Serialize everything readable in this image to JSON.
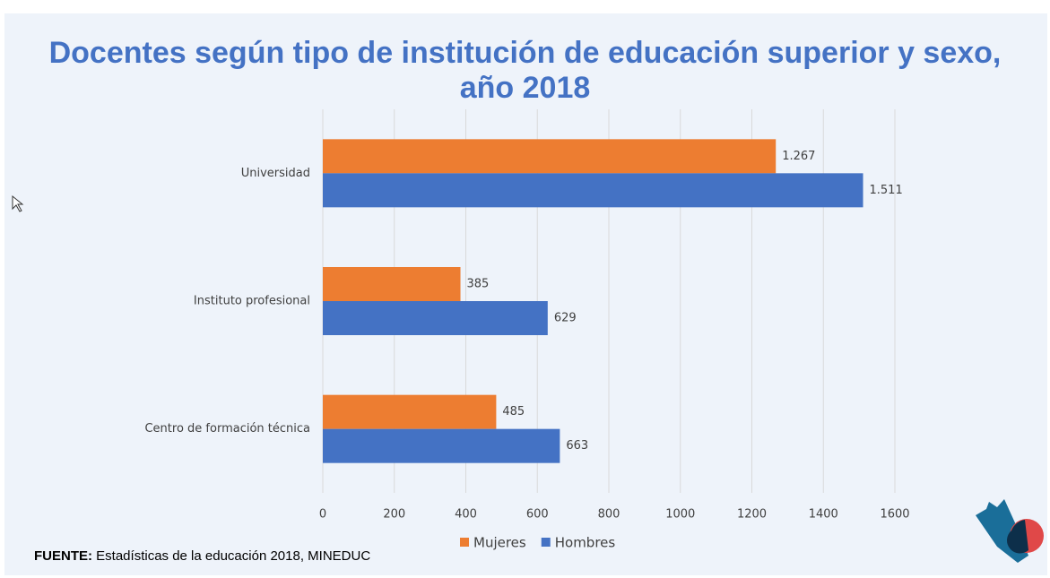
{
  "chart_data": {
    "type": "bar",
    "orientation": "horizontal",
    "title": "Docentes según tipo de institución de educación superior y sexo, año 2018",
    "categories": [
      "Universidad",
      "Instituto profesional",
      "Centro de formación técnica"
    ],
    "series": [
      {
        "name": "Mujeres",
        "color": "#ed7d31",
        "values": [
          1267,
          385,
          485
        ],
        "value_labels": [
          "1.267",
          "385",
          "485"
        ]
      },
      {
        "name": "Hombres",
        "color": "#4472c4",
        "values": [
          1511,
          629,
          663
        ],
        "value_labels": [
          "1.511",
          "629",
          "663"
        ]
      }
    ],
    "xlim": [
      0,
      1600
    ],
    "xticks": [
      0,
      200,
      400,
      600,
      800,
      1000,
      1200,
      1400,
      1600
    ],
    "grid": true,
    "legend": "bottom",
    "source_label": "FUENTE:",
    "source_text": "Estadísticas de la educación 2018, MINEDUC"
  }
}
